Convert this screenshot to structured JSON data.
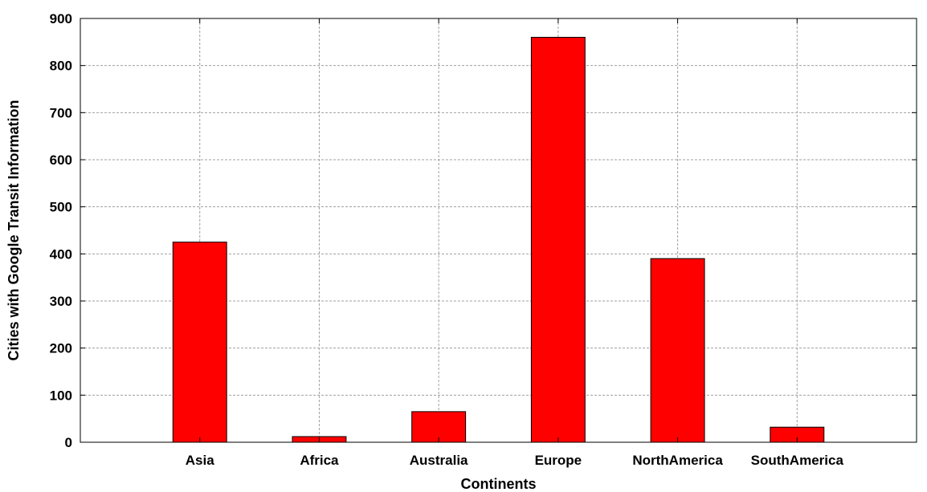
{
  "chart_data": {
    "type": "bar",
    "title": "",
    "xlabel": "Continents",
    "ylabel": "Cities with Google Transit Information",
    "categories": [
      "Asia",
      "Africa",
      "Australia",
      "Europe",
      "NorthAmerica",
      "SouthAmerica"
    ],
    "values": [
      425,
      12,
      65,
      860,
      390,
      32
    ],
    "ylim": [
      0,
      900
    ],
    "yticks": [
      0,
      100,
      200,
      300,
      400,
      500,
      600,
      700,
      800,
      900
    ],
    "grid": true,
    "legend": "none",
    "bar_color": "#ff0000",
    "bar_edge_color": "#000000",
    "grid_color": "#a0a0a0"
  }
}
